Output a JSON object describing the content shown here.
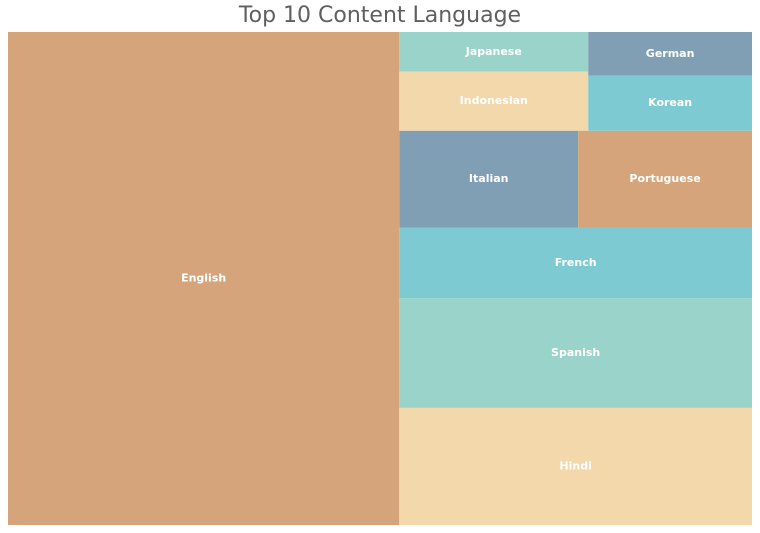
{
  "chart_data": {
    "type": "treemap",
    "title": "Top 10 Content Language",
    "categories": [
      "English",
      "Hindi",
      "Spanish",
      "French",
      "Italian",
      "Portuguese",
      "Indonesian",
      "Japanese",
      "Korean",
      "German"
    ],
    "values": [
      3175,
      680,
      637,
      410,
      285,
      277,
      184,
      123,
      148,
      118
    ],
    "colors": [
      "#d6a47a",
      "#f2d8aa",
      "#9ad3c9",
      "#7ecad2",
      "#809fb4",
      "#d6a47a",
      "#f2d8aa",
      "#9ad3c9",
      "#7ecad2",
      "#809fb4"
    ],
    "label_color": "#ffffff"
  }
}
